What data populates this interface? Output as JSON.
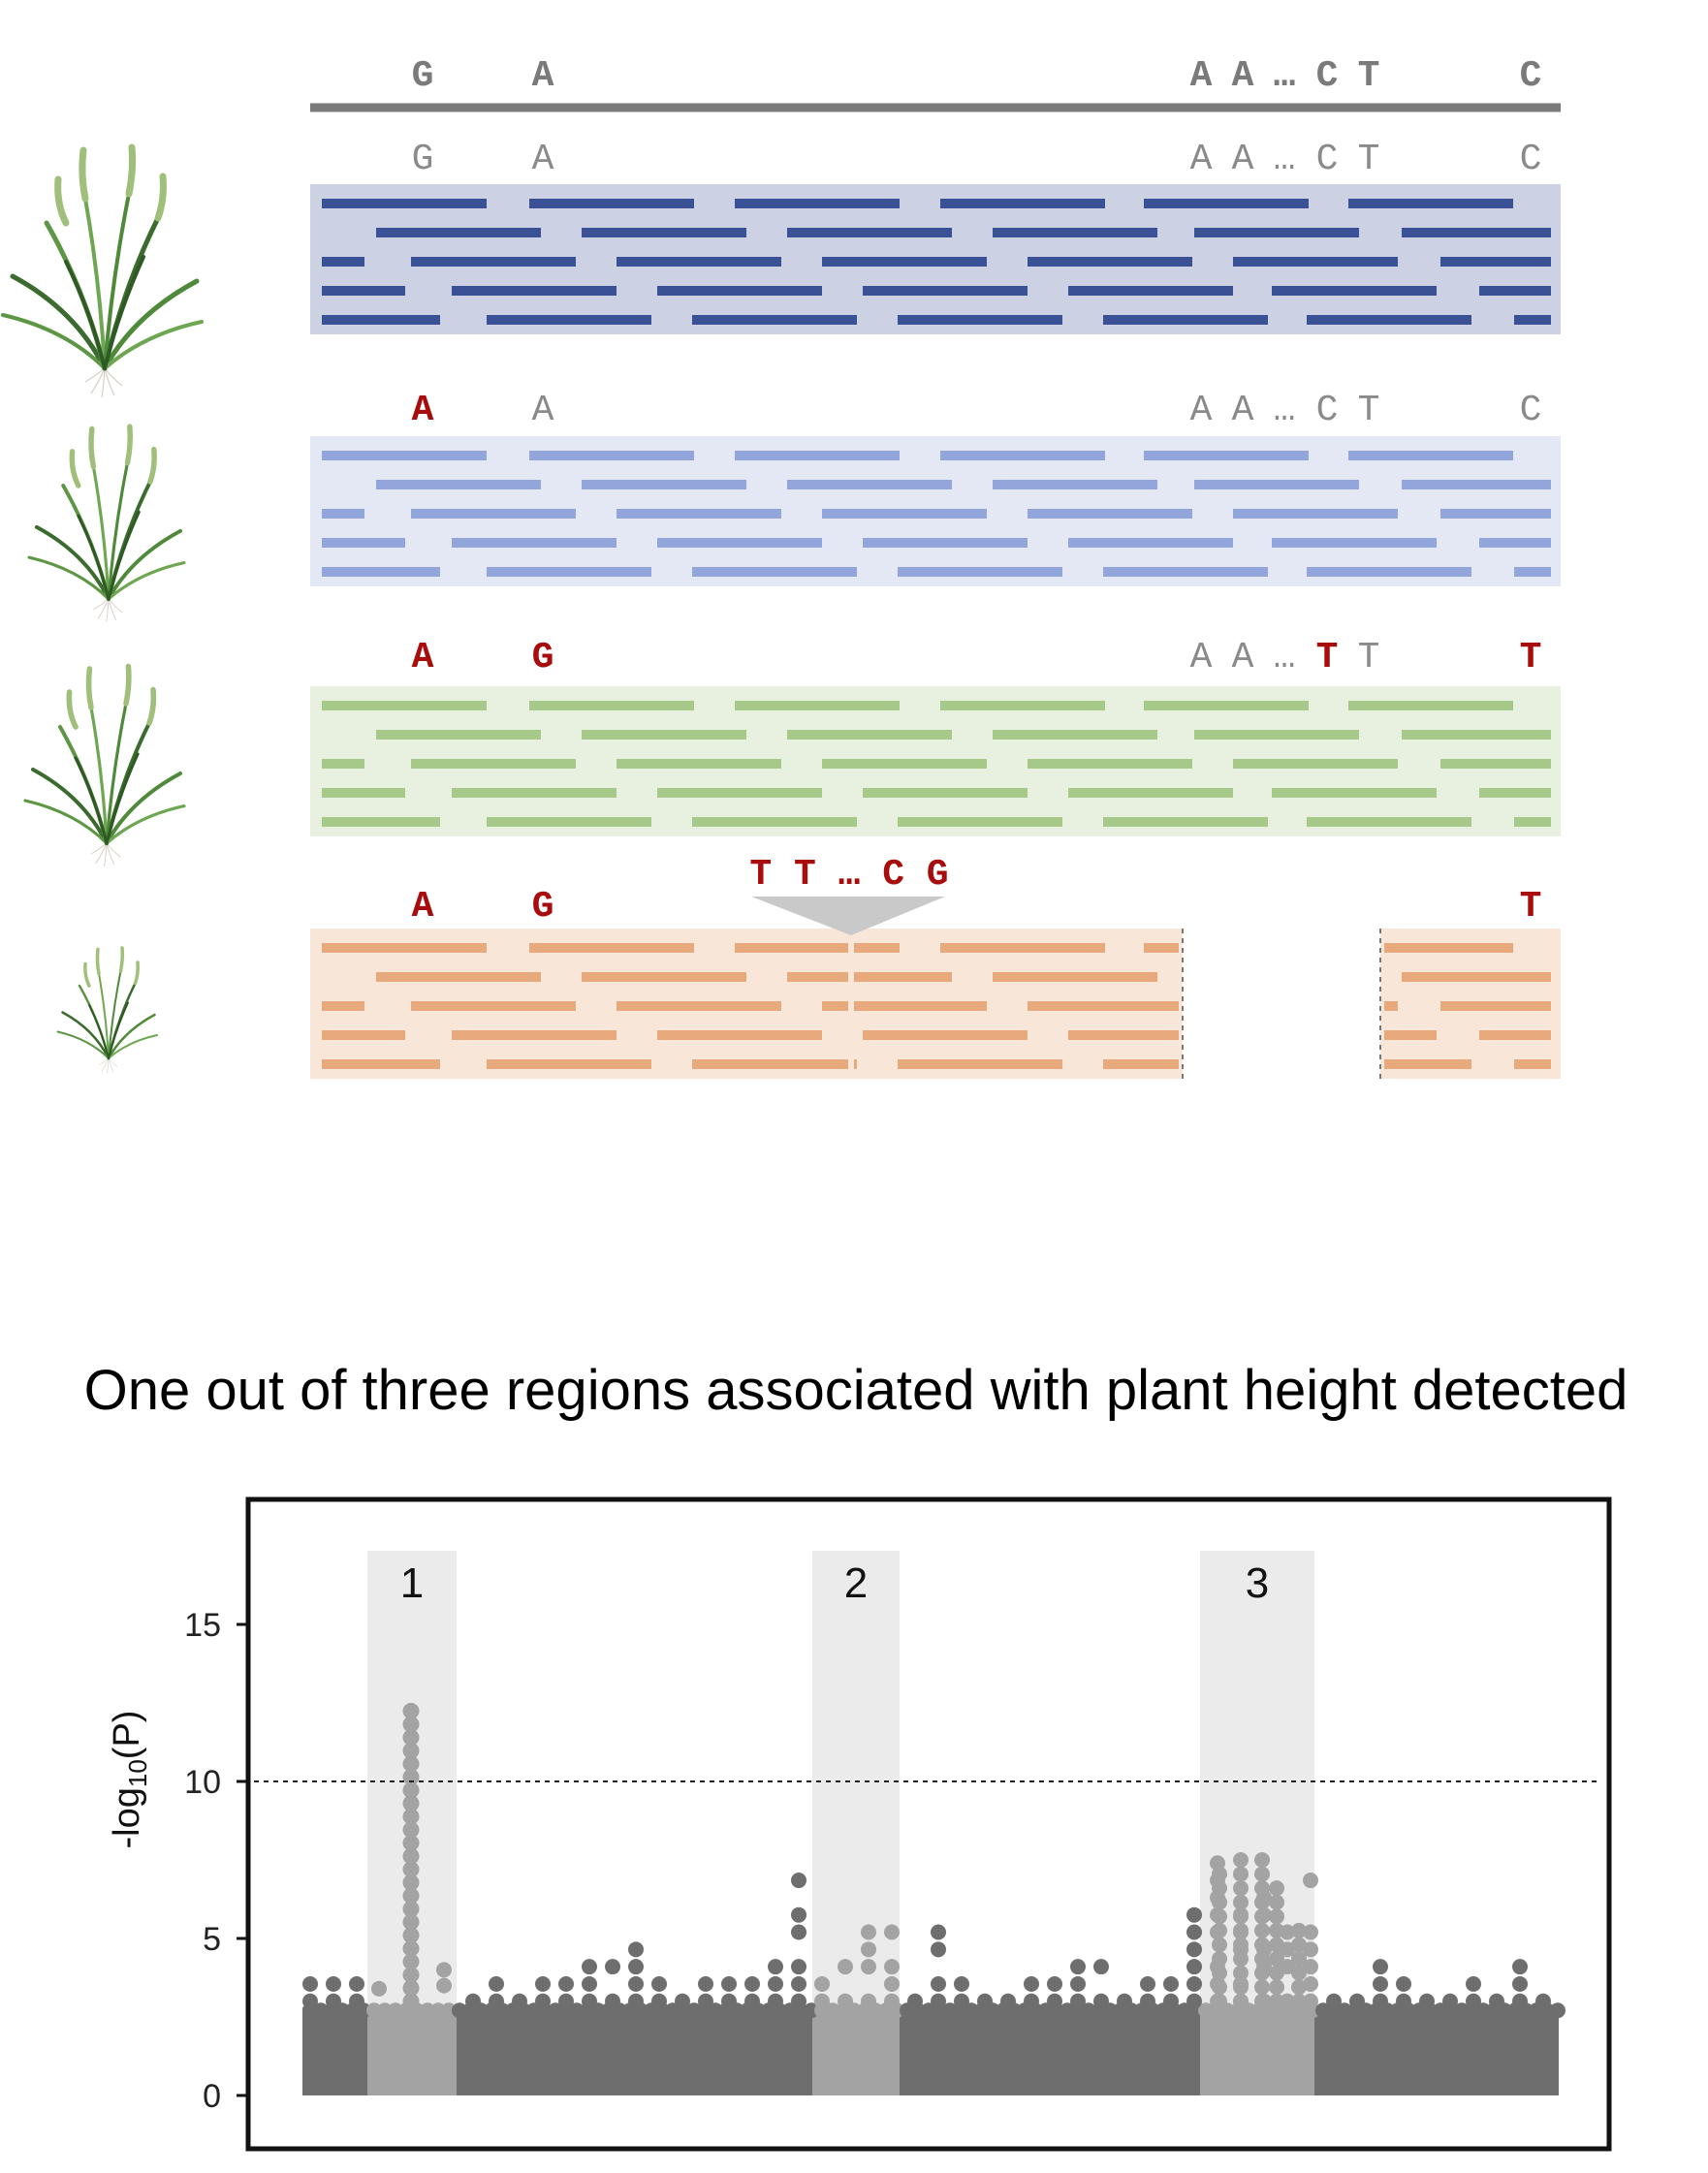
{
  "colors": {
    "reference_line": "#7a7a7a",
    "reference_text": "#7a7a7a",
    "variant_text": "#a80d0d",
    "accession_1_band": "#ccd2e3",
    "accession_1_read": "#3a5196",
    "accession_2_band": "#e4e8f4",
    "accession_2_read": "#93a6dc",
    "accession_3_band": "#e8f0e0",
    "accession_3_read": "#a6c98a",
    "accession_4_band": "#f8e6d8",
    "accession_4_read": "#e8aa7c",
    "plant_leaf_dark": "#3b6b2e",
    "plant_leaf_light": "#7aa85a",
    "manhattan_points": "#6e6e6e",
    "manhattan_highlight": "#a3a3a3",
    "region_shading": "#ebebeb"
  },
  "reference": {
    "bases": [
      "G",
      "A",
      "A",
      "A",
      "…",
      "C",
      "T",
      "C"
    ]
  },
  "accessions": [
    {
      "plant_icon": "grass-plant-icon",
      "alleles": [
        {
          "text": "G",
          "variant": false
        },
        {
          "text": "A",
          "variant": false
        },
        {
          "text": "A",
          "variant": false
        },
        {
          "text": "A",
          "variant": false
        },
        {
          "text": "…",
          "variant": false
        },
        {
          "text": "C",
          "variant": false
        },
        {
          "text": "T",
          "variant": false
        },
        {
          "text": "C",
          "variant": false
        }
      ]
    },
    {
      "plant_icon": "grass-plant-icon",
      "alleles": [
        {
          "text": "A",
          "variant": true
        },
        {
          "text": "A",
          "variant": false
        },
        {
          "text": "A",
          "variant": false
        },
        {
          "text": "A",
          "variant": false
        },
        {
          "text": "…",
          "variant": false
        },
        {
          "text": "C",
          "variant": false
        },
        {
          "text": "T",
          "variant": false
        },
        {
          "text": "C",
          "variant": false
        }
      ]
    },
    {
      "plant_icon": "grass-plant-icon",
      "alleles": [
        {
          "text": "A",
          "variant": true
        },
        {
          "text": "G",
          "variant": true
        },
        {
          "text": "A",
          "variant": false
        },
        {
          "text": "A",
          "variant": false
        },
        {
          "text": "…",
          "variant": false
        },
        {
          "text": "T",
          "variant": true
        },
        {
          "text": "T",
          "variant": false
        },
        {
          "text": "T",
          "variant": true
        }
      ]
    },
    {
      "plant_icon": "grass-plant-icon",
      "alleles": [
        {
          "text": "A",
          "variant": true
        },
        {
          "text": "G",
          "variant": true
        },
        {
          "text": "",
          "variant": false
        },
        {
          "text": "",
          "variant": false
        },
        {
          "text": "",
          "variant": false
        },
        {
          "text": "",
          "variant": false
        },
        {
          "text": "",
          "variant": false
        },
        {
          "text": "T",
          "variant": true
        }
      ],
      "insertion": "T T … C G",
      "deletion_gap": true
    }
  ],
  "title": "One out of three regions associated with plant height detected",
  "chart_data": {
    "type": "scatter",
    "title": "One out of three regions associated with plant height detected",
    "xlabel": "",
    "ylabel": "-log10(P)",
    "ylabel_main": "-log",
    "ylabel_sub": "10",
    "ylabel_tail": "(P)",
    "yticks": [
      "0",
      "5",
      "10",
      "15"
    ],
    "ylim": [
      0,
      17.5
    ],
    "threshold": 10,
    "grid": false,
    "baseline_fill_to": 2.8,
    "regions": [
      {
        "label": "1",
        "peak": 12.4,
        "detected": true
      },
      {
        "label": "2",
        "peak": 6.2,
        "detected": false
      },
      {
        "label": "3",
        "peak": 7.6,
        "detected": false
      }
    ],
    "note": "Manhattan plot; points below ~2.8 form a dense band"
  }
}
